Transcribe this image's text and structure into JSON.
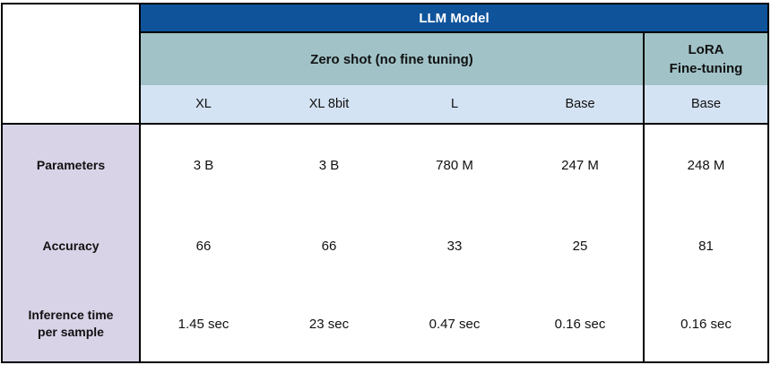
{
  "chart_data": {
    "type": "table",
    "title": "LLM Model",
    "column_groups": [
      {
        "label": "Zero shot (no fine tuning)",
        "columns": [
          "XL",
          "XL 8bit",
          "L",
          "Base"
        ]
      },
      {
        "label": "LoRA\nFine-tuning",
        "columns": [
          "Base"
        ]
      }
    ],
    "row_headers": [
      "Parameters",
      "Accuracy",
      "Inference time\nper sample"
    ],
    "rows": [
      {
        "label": "Parameters",
        "values": [
          "3 B",
          "3 B",
          "780 M",
          "247 M",
          "248 M"
        ]
      },
      {
        "label": "Accuracy",
        "values": [
          "66",
          "66",
          "33",
          "25",
          "81"
        ]
      },
      {
        "label": "Inference time\nper sample",
        "values": [
          "1.45 sec",
          "23 sec",
          "0.47 sec",
          "0.16 sec",
          "0.16 sec"
        ]
      }
    ],
    "layout": {
      "grid": "off",
      "internal_column_borders": "only between zero-shot group and LoRA column",
      "internal_row_borders": "below title row and below sub-header row"
    }
  },
  "colors": {
    "title_bar_blue": "#0F549B",
    "group_header_teal": "#A1C3C8",
    "subheader_light_blue": "#D4E3F3",
    "row_header_purple": "#D9D3E8",
    "border_black": "#000000",
    "title_text_white": "#FFFFFF",
    "body_text_black": "#111111"
  }
}
